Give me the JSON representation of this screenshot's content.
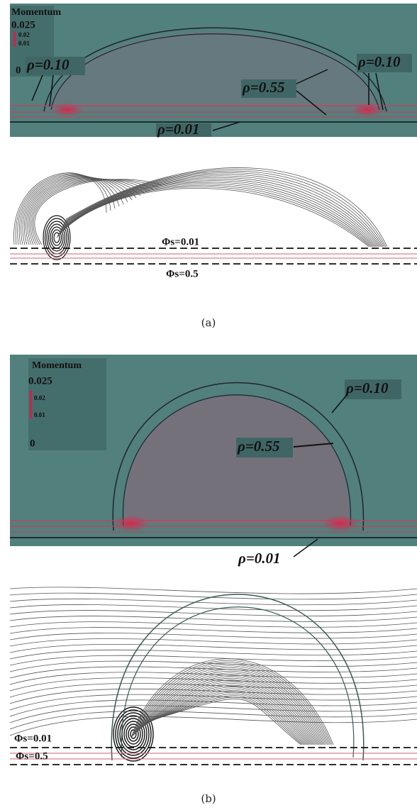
{
  "figure": {
    "panels": [
      {
        "label": "(a)",
        "momentum_map": {
          "title": "Momentum",
          "colorbar": {
            "max_label": "0.025",
            "tick_labels": [
              "0.02",
              "0.01"
            ],
            "min_label": "0"
          },
          "annotations": [
            "ρ=0.10",
            "ρ=0.10",
            "ρ=0.55",
            "ρ=0.01"
          ]
        },
        "streamline_map": {
          "annotations": [
            "Φs=0.01",
            "Φs=0.5"
          ]
        }
      },
      {
        "label": "(b)",
        "momentum_map": {
          "title": "Momentum",
          "colorbar": {
            "max_label": "0.025",
            "tick_labels": [
              "0.02",
              "0.01"
            ],
            "min_label": "0"
          },
          "annotations": [
            "ρ=0.10",
            "ρ=0.55",
            "ρ=0.01"
          ]
        },
        "streamline_map": {
          "annotations": [
            "Φs=0.01",
            "Φs=0.5"
          ]
        }
      }
    ]
  }
}
